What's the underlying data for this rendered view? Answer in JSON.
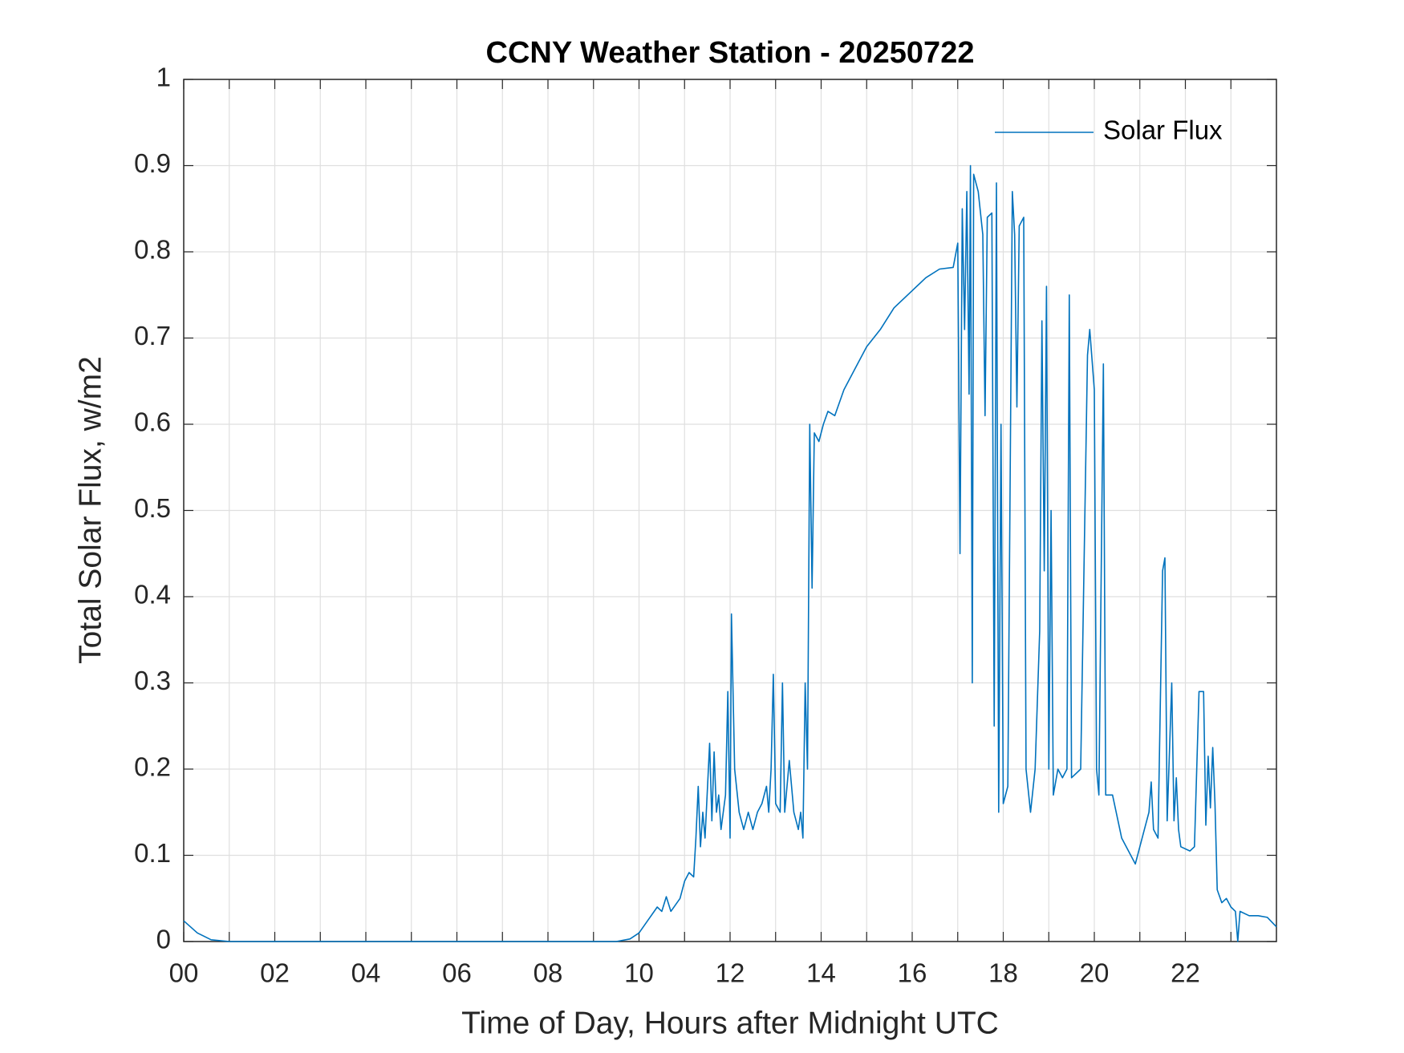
{
  "chart_data": {
    "type": "line",
    "title": "CCNY Weather Station - 20250722",
    "xlabel": "Time of Day, Hours after Midnight UTC",
    "ylabel": "Total Solar Flux, w/m2",
    "xlim": [
      0,
      24
    ],
    "ylim": [
      0,
      1
    ],
    "xticks": [
      {
        "value": 0,
        "label": "00"
      },
      {
        "value": 2,
        "label": "02"
      },
      {
        "value": 4,
        "label": "04"
      },
      {
        "value": 6,
        "label": "06"
      },
      {
        "value": 8,
        "label": "08"
      },
      {
        "value": 10,
        "label": "10"
      },
      {
        "value": 12,
        "label": "12"
      },
      {
        "value": 14,
        "label": "14"
      },
      {
        "value": 16,
        "label": "16"
      },
      {
        "value": 18,
        "label": "18"
      },
      {
        "value": 20,
        "label": "20"
      },
      {
        "value": 22,
        "label": "22"
      }
    ],
    "xminorticks": [
      1,
      3,
      5,
      7,
      9,
      11,
      13,
      15,
      17,
      19,
      21,
      23
    ],
    "yticks": [
      0,
      0.1,
      0.2,
      0.3,
      0.4,
      0.5,
      0.6,
      0.7,
      0.8,
      0.9,
      1
    ],
    "grid": true,
    "legend": "northeast",
    "x": [
      0,
      0.3,
      0.6,
      1,
      2,
      3,
      4,
      5,
      6,
      7,
      8,
      9,
      9.5,
      9.8,
      10,
      10.2,
      10.4,
      10.5,
      10.6,
      10.7,
      10.9,
      11,
      11.1,
      11.2,
      11.25,
      11.3,
      11.35,
      11.4,
      11.45,
      11.55,
      11.6,
      11.65,
      11.7,
      11.75,
      11.8,
      11.9,
      11.95,
      12,
      12.03,
      12.1,
      12.2,
      12.3,
      12.4,
      12.5,
      12.6,
      12.7,
      12.8,
      12.85,
      12.9,
      12.95,
      13,
      13.1,
      13.15,
      13.2,
      13.3,
      13.4,
      13.5,
      13.55,
      13.6,
      13.65,
      13.7,
      13.75,
      13.8,
      13.85,
      13.95,
      14.05,
      14.15,
      14.3,
      14.5,
      14.8,
      15,
      15.3,
      15.6,
      16,
      16.3,
      16.6,
      16.9,
      17,
      17.05,
      17.1,
      17.15,
      17.2,
      17.25,
      17.28,
      17.32,
      17.35,
      17.45,
      17.55,
      17.6,
      17.65,
      17.75,
      17.8,
      17.85,
      17.9,
      17.95,
      18,
      18.1,
      18.2,
      18.25,
      18.3,
      18.35,
      18.45,
      18.5,
      18.6,
      18.7,
      18.8,
      18.85,
      18.9,
      18.95,
      19,
      19.05,
      19.1,
      19.2,
      19.3,
      19.4,
      19.45,
      19.5,
      19.7,
      19.85,
      19.9,
      20,
      20.05,
      20.1,
      20.2,
      20.25,
      20.4,
      20.6,
      20.9,
      21.1,
      21.2,
      21.25,
      21.3,
      21.4,
      21.5,
      21.55,
      21.6,
      21.7,
      21.75,
      21.8,
      21.85,
      21.9,
      22.1,
      22.2,
      22.3,
      22.4,
      22.45,
      22.5,
      22.55,
      22.6,
      22.65,
      22.7,
      22.8,
      22.9,
      23,
      23.1,
      23.15,
      23.2,
      23.4,
      23.6,
      23.8,
      24
    ],
    "series": [
      {
        "name": "Solar Flux",
        "color": "#0072bd",
        "values": [
          0.024,
          0.01,
          0.002,
          0,
          0,
          0,
          0,
          0,
          0,
          0,
          0,
          0,
          0,
          0.003,
          0.01,
          0.025,
          0.04,
          0.035,
          0.052,
          0.035,
          0.05,
          0.07,
          0.08,
          0.075,
          0.12,
          0.18,
          0.11,
          0.15,
          0.12,
          0.23,
          0.14,
          0.22,
          0.15,
          0.17,
          0.13,
          0.17,
          0.29,
          0.12,
          0.38,
          0.2,
          0.15,
          0.13,
          0.15,
          0.13,
          0.15,
          0.16,
          0.18,
          0.15,
          0.2,
          0.31,
          0.16,
          0.15,
          0.3,
          0.15,
          0.21,
          0.15,
          0.13,
          0.15,
          0.12,
          0.3,
          0.2,
          0.6,
          0.41,
          0.59,
          0.58,
          0.6,
          0.615,
          0.61,
          0.64,
          0.67,
          0.69,
          0.71,
          0.735,
          0.755,
          0.77,
          0.78,
          0.782,
          0.81,
          0.45,
          0.85,
          0.71,
          0.87,
          0.635,
          0.9,
          0.3,
          0.89,
          0.87,
          0.82,
          0.61,
          0.84,
          0.845,
          0.25,
          0.88,
          0.15,
          0.6,
          0.16,
          0.18,
          0.87,
          0.82,
          0.62,
          0.83,
          0.84,
          0.2,
          0.15,
          0.2,
          0.36,
          0.72,
          0.43,
          0.76,
          0.2,
          0.5,
          0.17,
          0.2,
          0.19,
          0.2,
          0.75,
          0.19,
          0.2,
          0.68,
          0.71,
          0.64,
          0.2,
          0.17,
          0.67,
          0.17,
          0.17,
          0.12,
          0.09,
          0.13,
          0.15,
          0.185,
          0.13,
          0.12,
          0.43,
          0.445,
          0.14,
          0.3,
          0.14,
          0.19,
          0.13,
          0.11,
          0.105,
          0.11,
          0.29,
          0.29,
          0.135,
          0.215,
          0.155,
          0.225,
          0.16,
          0.06,
          0.045,
          0.05,
          0.04,
          0.035,
          0,
          0.035,
          0.03,
          0.03,
          0.028,
          0.017
        ]
      }
    ]
  }
}
